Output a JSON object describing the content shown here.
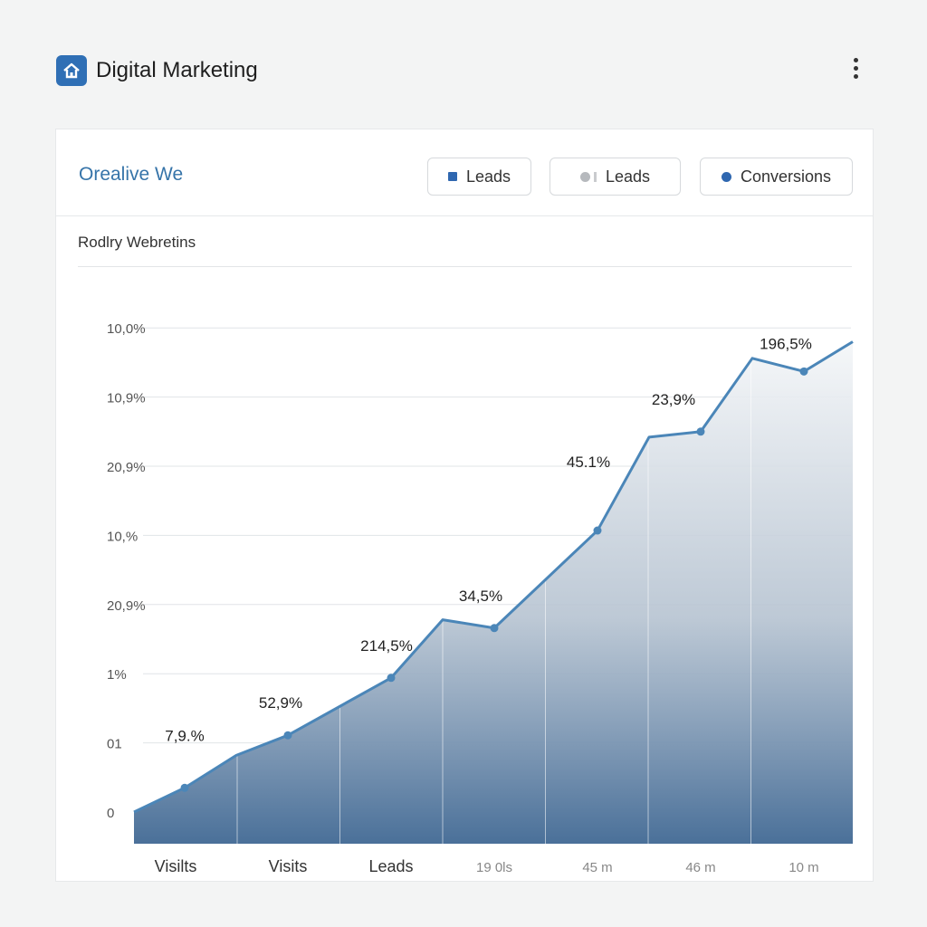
{
  "header": {
    "title": "Digital Marketing",
    "icon": "home-icon",
    "menu_icon": "more-vertical-icon"
  },
  "card": {
    "title": "Orealive We",
    "subtitle": "Rodlry Webretins",
    "legend": [
      {
        "label": "Leads",
        "marker": "square",
        "color": "#2f67b0"
      },
      {
        "label": "Leads",
        "marker": "grey-dot",
        "color": "#b6b9bd"
      },
      {
        "label": "Conversions",
        "marker": "dot",
        "color": "#2f67b0"
      }
    ]
  },
  "chart_data": {
    "type": "area",
    "title": "Orealive We",
    "subtitle": "Rodlry Webretins",
    "x_tick_labels": [
      "Visilts",
      "Visits",
      "Leads",
      "19 0ls",
      "45 m",
      "46 m",
      "10 m"
    ],
    "y_tick_labels": [
      "0",
      "01",
      "1%",
      "20,9%",
      "10,%",
      "20,9%",
      "10,9%",
      "10,0%"
    ],
    "grid": true,
    "line_color": "#4b86b8",
    "fill_color_top": "#f4f6f8",
    "fill_color_bottom": "#4a7099",
    "series": [
      {
        "values": [
          0.35,
          1.11,
          1.94,
          2.66,
          4.07,
          5.5,
          6.37
        ],
        "point_labels": [
          "7,9.%",
          "52,9%",
          "214,5%",
          "34,5%",
          "45.1%",
          "23,9%",
          "196,5%"
        ]
      }
    ],
    "unlabeled_vertices": [
      {
        "x_index": 0.5,
        "value": 0.82
      },
      {
        "x_index": 2.5,
        "value": 2.78
      },
      {
        "x_index": 4.5,
        "value": 5.42
      },
      {
        "x_index": 5.5,
        "value": 6.56
      }
    ],
    "start_value": 0.0
  }
}
